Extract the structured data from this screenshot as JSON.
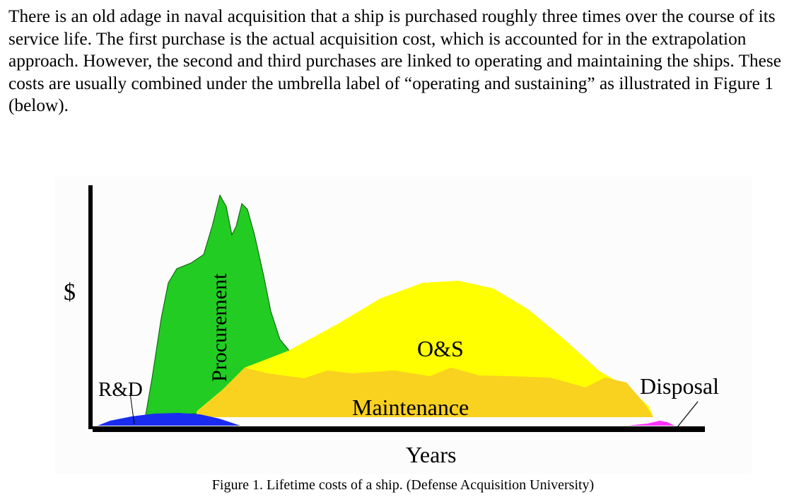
{
  "paragraph": "There is an old adage in naval acquisition that a ship is purchased roughly three times over the course of its service life. The first purchase is the actual acquisition cost, which is accounted for in the extrapolation approach. However, the second and third purchases are linked to operating and maintaining the ships. These costs are usually combined under the umbrella label of “operating and sustaining” as illustrated in Figure 1 (below).",
  "figure": {
    "y_axis_label": "$",
    "x_axis_label": "Years",
    "labels": {
      "rd": "R&D",
      "procurement": "Procurement",
      "os": "O&S",
      "maintenance": "Maintenance",
      "disposal": "Disposal"
    },
    "caption": "Figure 1. Lifetime costs of a ship. (Defense Acquisition University)",
    "colors": {
      "procurement": "#22cc22",
      "os": "#ffff00",
      "maintenance": "#f9d11f",
      "rd": "#1a2cf0",
      "disposal": "#ff33ff",
      "axis": "#000000"
    }
  }
}
